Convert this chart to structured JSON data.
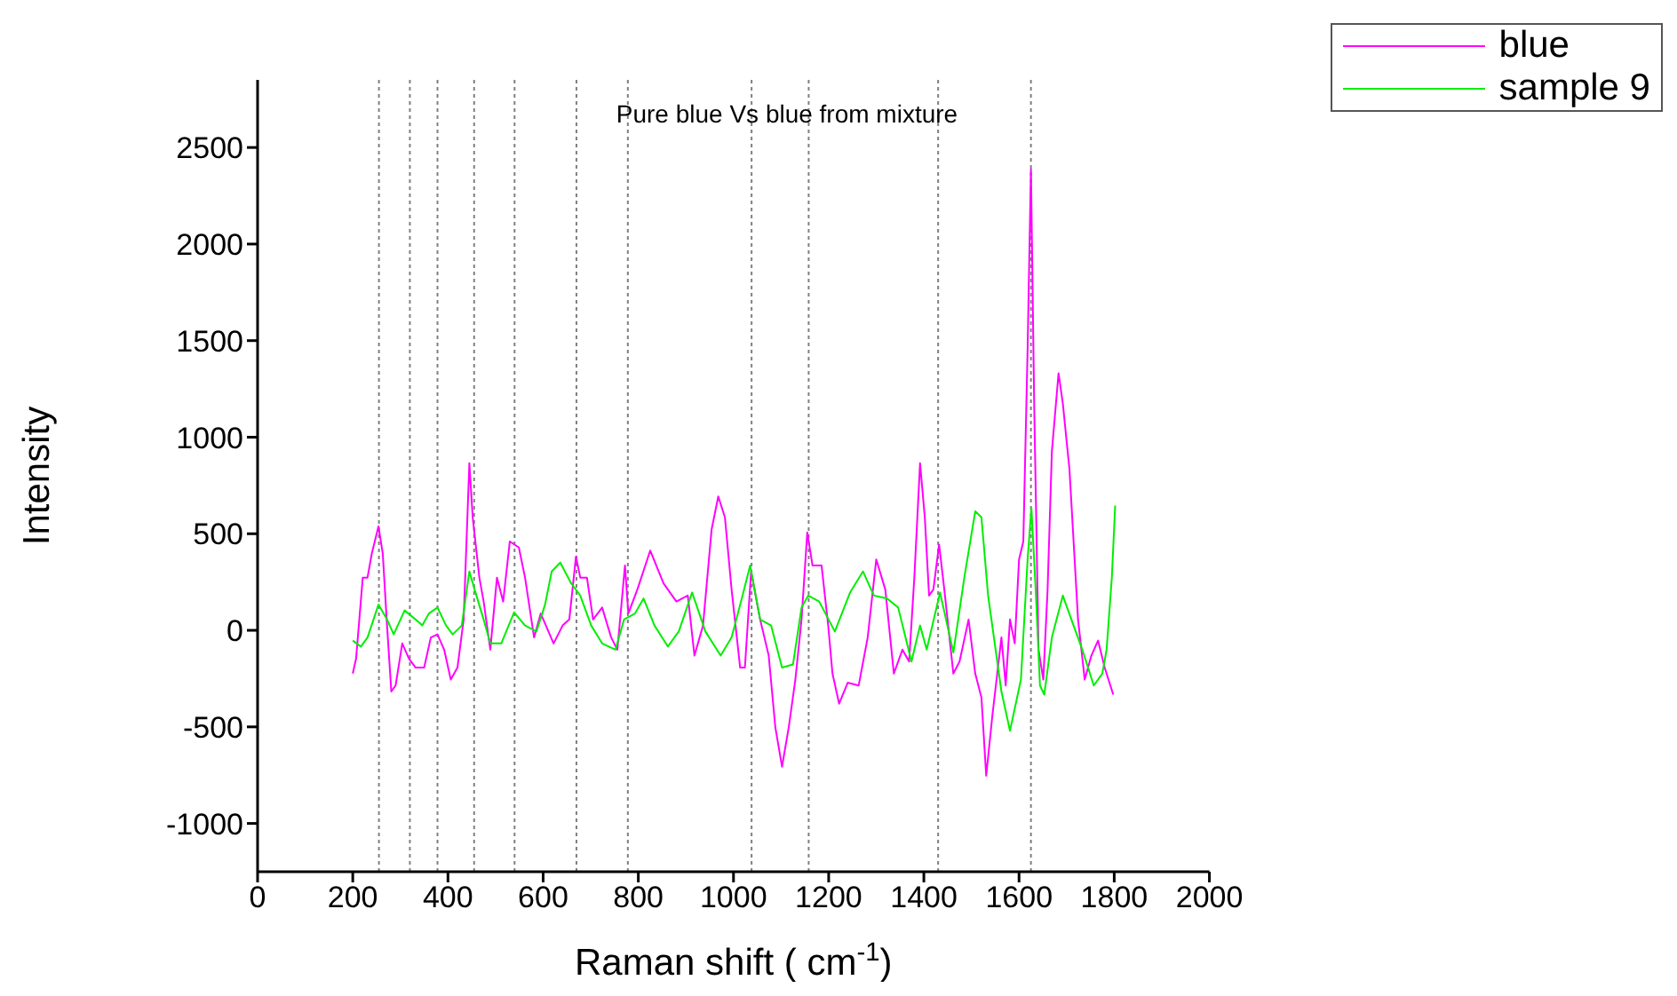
{
  "chart_data": {
    "type": "line",
    "title": "Pure blue Vs blue from mixture",
    "xlabel": "Raman shift  ( cm$^{-1}$)",
    "ylabel": "Intensity",
    "xlim": [
      0,
      2000
    ],
    "xticks": [
      0,
      200,
      400,
      600,
      800,
      1000,
      1200,
      1400,
      1600,
      1800,
      2000
    ],
    "ylim": [
      -1250,
      2850
    ],
    "yticks": [
      -1000,
      -500,
      0,
      500,
      1000,
      1500,
      2000,
      2500
    ],
    "legend": "top right",
    "marker": "none",
    "line_style": "solid",
    "ref_lines": [
      {
        "axis": "x",
        "value": 255,
        "color": "#808080",
        "line_style": "dotted"
      },
      {
        "axis": "x",
        "value": 320,
        "color": "#808080",
        "line_style": "dotted"
      },
      {
        "axis": "x",
        "value": 378,
        "color": "#808080",
        "line_style": "dotted"
      },
      {
        "axis": "x",
        "value": 455,
        "color": "#808080",
        "line_style": "dotted"
      },
      {
        "axis": "x",
        "value": 540,
        "color": "#808080",
        "line_style": "dotted"
      },
      {
        "axis": "x",
        "value": 670,
        "color": "#808080",
        "line_style": "dotted"
      },
      {
        "axis": "x",
        "value": 778,
        "color": "#808080",
        "line_style": "dotted"
      },
      {
        "axis": "x",
        "value": 1038,
        "color": "#808080",
        "line_style": "dotted"
      },
      {
        "axis": "x",
        "value": 1158,
        "color": "#808080",
        "line_style": "dotted"
      },
      {
        "axis": "x",
        "value": 1430,
        "color": "#808080",
        "line_style": "dotted"
      },
      {
        "axis": "x",
        "value": 1625,
        "color": "#808080",
        "line_style": "dotted"
      }
    ],
    "series": [
      {
        "name": "blue",
        "color": "#ff00ff",
        "x": [
          200,
          207,
          221,
          231,
          240,
          254,
          263,
          272,
          281,
          290,
          304,
          318,
          332,
          350,
          364,
          378,
          392,
          406,
          420,
          433,
          445,
          452,
          466,
          475,
          489,
          503,
          516,
          530,
          549,
          562,
          581,
          595,
          622,
          641,
          655,
          669,
          678,
          692,
          705,
          724,
          743,
          756,
          772,
          779,
          798,
          825,
          853,
          880,
          904,
          918,
          936,
          954,
          968,
          982,
          996,
          1014,
          1024,
          1037,
          1056,
          1074,
          1088,
          1102,
          1116,
          1130,
          1143,
          1155,
          1166,
          1185,
          1199,
          1208,
          1222,
          1240,
          1263,
          1282,
          1300,
          1319,
          1337,
          1355,
          1369,
          1380,
          1392,
          1402,
          1411,
          1420,
          1432,
          1443,
          1462,
          1475,
          1494,
          1508,
          1521,
          1531,
          1544,
          1563,
          1572,
          1581,
          1591,
          1600,
          1609,
          1618,
          1625,
          1632,
          1641,
          1651,
          1660,
          1669,
          1683,
          1692,
          1706,
          1724,
          1738,
          1752,
          1766,
          1780,
          1798
        ],
        "values": [
          -224,
          -146,
          273,
          273,
          398,
          538,
          398,
          25,
          -317,
          -286,
          -68,
          -146,
          -193,
          -193,
          -37,
          -21,
          -100,
          -255,
          -193,
          56,
          865,
          585,
          273,
          149,
          -100,
          273,
          149,
          460,
          429,
          273,
          -37,
          87,
          -68,
          25,
          56,
          382,
          273,
          273,
          56,
          118,
          -37,
          -100,
          336,
          87,
          211,
          413,
          243,
          149,
          180,
          -131,
          25,
          522,
          693,
          585,
          211,
          -193,
          -193,
          305,
          56,
          -131,
          -504,
          -706,
          -504,
          -255,
          56,
          507,
          336,
          336,
          25,
          -224,
          -380,
          -271,
          -286,
          -37,
          367,
          211,
          -224,
          -100,
          -162,
          273,
          865,
          585,
          180,
          211,
          444,
          211,
          -224,
          -162,
          56,
          -224,
          -348,
          -753,
          -441,
          -37,
          -286,
          56,
          -68,
          367,
          460,
          1455,
          2388,
          1144,
          -100,
          -255,
          211,
          926,
          1331,
          1175,
          833,
          56,
          -255,
          -131,
          -53,
          -193,
          -333
        ]
      },
      {
        "name": "sample 9",
        "color": "#00ee00",
        "x": [
          200,
          217,
          231,
          254,
          272,
          286,
          309,
          332,
          346,
          360,
          378,
          396,
          410,
          429,
          445,
          456,
          475,
          489,
          512,
          539,
          562,
          586,
          604,
          618,
          636,
          659,
          678,
          701,
          724,
          752,
          770,
          793,
          811,
          834,
          862,
          885,
          913,
          941,
          973,
          996,
          1019,
          1035,
          1056,
          1079,
          1102,
          1125,
          1143,
          1157,
          1180,
          1213,
          1245,
          1272,
          1295,
          1323,
          1346,
          1374,
          1392,
          1406,
          1434,
          1462,
          1485,
          1508,
          1521,
          1535,
          1563,
          1581,
          1604,
          1618,
          1626,
          1635,
          1644,
          1653,
          1669,
          1692,
          1710,
          1733,
          1757,
          1775,
          1784,
          1795,
          1802
        ],
        "values": [
          -53,
          -84,
          -37,
          133,
          56,
          -21,
          103,
          56,
          25,
          87,
          118,
          25,
          -21,
          25,
          305,
          211,
          56,
          -68,
          -68,
          93,
          25,
          -6,
          133,
          305,
          351,
          243,
          180,
          25,
          -68,
          -100,
          56,
          87,
          165,
          25,
          -84,
          -6,
          196,
          -6,
          -131,
          -37,
          180,
          336,
          56,
          25,
          -193,
          -177,
          118,
          180,
          149,
          -6,
          196,
          305,
          180,
          165,
          118,
          -162,
          25,
          -100,
          196,
          -115,
          273,
          616,
          585,
          180,
          -317,
          -520,
          -255,
          367,
          632,
          211,
          -286,
          -333,
          -37,
          180,
          56,
          -100,
          -286,
          -224,
          -100,
          273,
          646
        ]
      }
    ]
  }
}
